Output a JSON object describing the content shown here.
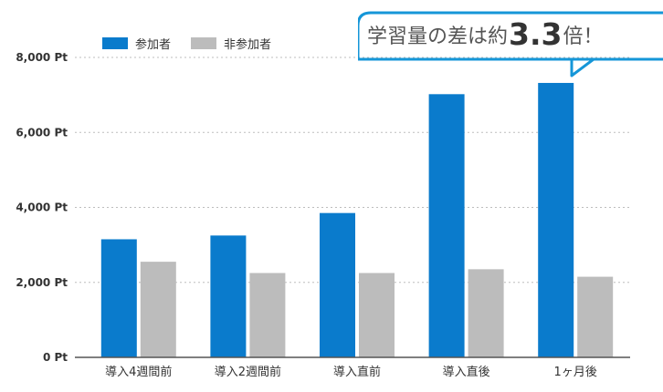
{
  "legend": {
    "participants": "参加者",
    "non_participants": "非参加者"
  },
  "callout": {
    "prefix": "学習量の差は約",
    "value": "3.3",
    "suffix": "倍！"
  },
  "colors": {
    "participants": "#0a7bcc",
    "non_participants": "#bcbcbc",
    "callout_border": "#1596d8",
    "grid": "#bdbdbd",
    "axis": "#555555"
  },
  "chart_data": {
    "type": "bar",
    "categories": [
      "導入4週間前",
      "導入2週間前",
      "導入直前",
      "導入直後",
      "1ヶ月後"
    ],
    "series": [
      {
        "name": "参加者",
        "values": [
          3150,
          3250,
          3850,
          7020,
          7320
        ]
      },
      {
        "name": "非参加者",
        "values": [
          2550,
          2250,
          2250,
          2350,
          2150
        ]
      }
    ],
    "ylim": [
      0,
      8000
    ],
    "yticks": [
      0,
      2000,
      4000,
      6000,
      8000
    ],
    "ytick_labels": [
      "0 Pt",
      "2,000 Pt",
      "4,000 Pt",
      "6,000 Pt",
      "8,000 Pt"
    ],
    "grid": true,
    "legend_position": "top-left",
    "xlabel": "",
    "ylabel": "",
    "title": ""
  }
}
